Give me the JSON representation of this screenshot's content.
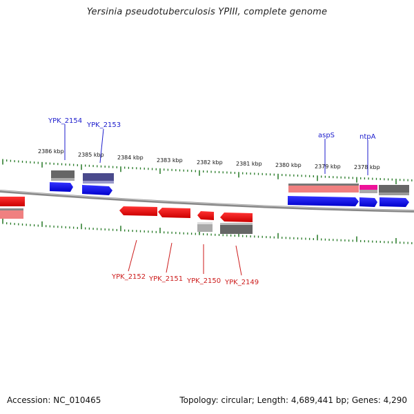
{
  "title": "Yersinia pseudotuberculosis YPIII, complete genome",
  "footer": {
    "accession": "Accession: NC_010465",
    "summary": "Topology: circular; Length: 4,689,441 bp; Genes: 4,290"
  },
  "colors": {
    "forward_cds": "#0000ee",
    "reverse_cds": "#ee0000",
    "gene_grey": "#666666",
    "gene_purple": "#4a4a8c",
    "gene_pink": "#f08080",
    "gene_magenta": "#ee1199",
    "gene_light": "#aaaaaa",
    "tick_green": "#227722",
    "backbone": "#888888",
    "label_top": "#1a1acc",
    "label_bottom": "#cc1a1a"
  },
  "scale_ticks": [
    "2386 kbp",
    "2385 kbp",
    "2384 kbp",
    "2383 kbp",
    "2382 kbp",
    "2381 kbp",
    "2380 kbp",
    "2379 kbp",
    "2378 kbp"
  ],
  "labels_top": [
    "YPK_2154",
    "YPK_2153",
    "aspS",
    "ntpA"
  ],
  "labels_bottom": [
    "YPK_2152",
    "YPK_2151",
    "YPK_2150",
    "YPK_2149"
  ]
}
